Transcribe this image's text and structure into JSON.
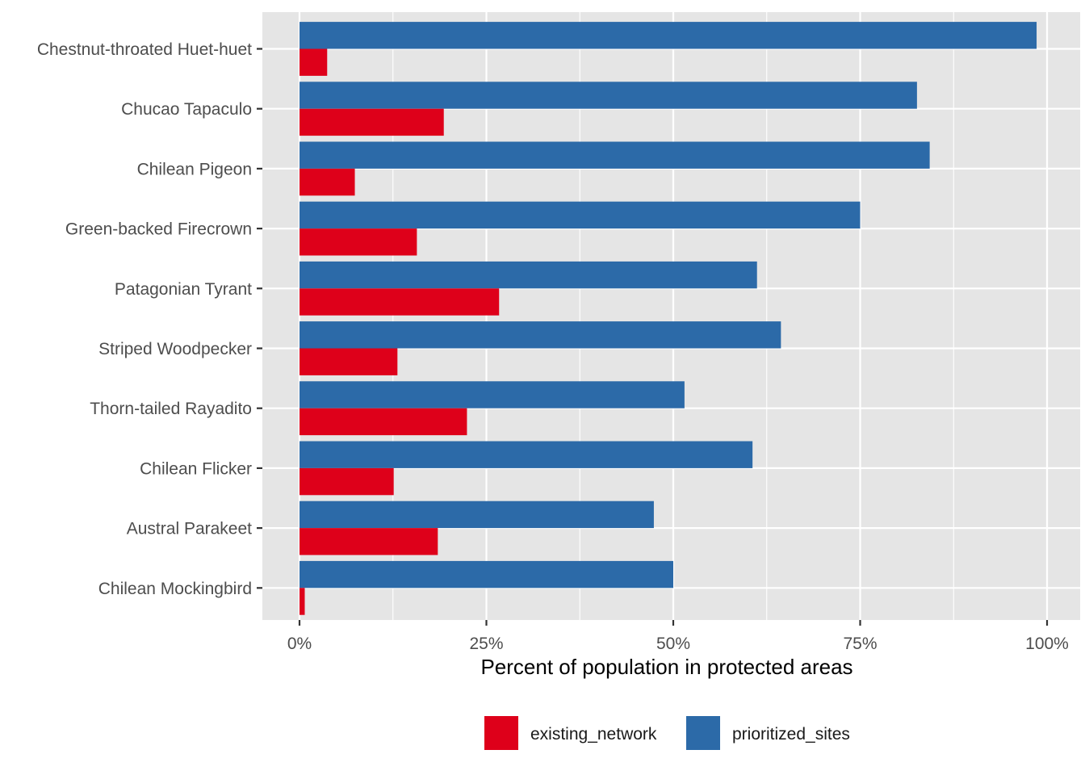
{
  "chart_data": {
    "type": "bar",
    "orientation": "horizontal",
    "categories": [
      "Chestnut-throated Huet-huet",
      "Chucao Tapaculo",
      "Chilean Pigeon",
      "Green-backed Firecrown",
      "Patagonian Tyrant",
      "Striped Woodpecker",
      "Thorn-tailed Rayadito",
      "Chilean Flicker",
      "Austral Parakeet",
      "Chilean Mockingbird"
    ],
    "series": [
      {
        "name": "existing_network",
        "color": "#de001a",
        "values": [
          3.7,
          19.3,
          7.4,
          15.7,
          26.7,
          13.1,
          22.4,
          12.6,
          18.5,
          0.7
        ]
      },
      {
        "name": "prioritized_sites",
        "color": "#2c6aa8",
        "values": [
          98.6,
          82.6,
          84.3,
          75.0,
          61.2,
          64.4,
          51.5,
          60.6,
          47.4,
          50.0
        ]
      }
    ],
    "xlabel": "Percent of population in protected areas",
    "ylabel": "",
    "xlim": [
      -5,
      103
    ],
    "xticks": [
      0,
      25,
      50,
      75,
      100
    ],
    "xtick_labels": [
      "0%",
      "25%",
      "50%",
      "75%",
      "100%"
    ],
    "grid": true,
    "legend_position": "bottom",
    "panel_background": "#e5e5e5",
    "gridline_color": "#ffffff"
  }
}
